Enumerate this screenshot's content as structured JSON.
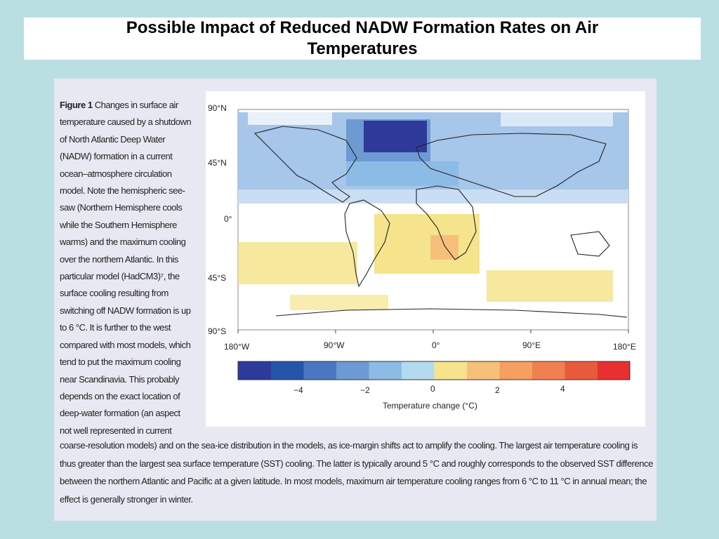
{
  "slide": {
    "title": "Possible Impact of Reduced NADW Formation Rates on Air Temperatures"
  },
  "figure": {
    "label": "Figure 1",
    "caption_side": "Changes in surface air\ntemperature caused by a shutdown\nof North Atlantic Deep Water\n(NADW) formation in a current\nocean–atmosphere circulation\nmodel. Note the hemispheric see-\nsaw (Northern Hemisphere cools\nwhile the Southern Hemisphere\nwarms) and the maximum cooling\nover the northern Atlantic. In this\nparticular model (HadCM3)⁷, the\nsurface cooling resulting from\nswitching off NADW formation is up\nto 6 °C. It is further to the west\ncompared with most models, which\ntend to put the maximum cooling\nnear Scandinavia. This probably\ndepends on the exact location of\ndeep-water formation (an aspect\nnot well represented in current",
    "caption_bottom": "coarse-resolution models) and on the sea-ice distribution in the models, as ice-margin shifts act to amplify the cooling. The largest air temperature cooling is thus greater than the largest sea surface temperature (SST) cooling. The latter is typically around 5 °C and roughly corresponds to the observed SST difference between the northern Atlantic and Pacific at a given latitude. In most models, maximum air temperature cooling ranges from 6 °C to 11 °C in annual mean; the effect is generally stronger in winter.",
    "lat_labels": [
      "90°N",
      "45°N",
      "0°",
      "45°S",
      "90°S"
    ],
    "lon_labels": [
      "180°W",
      "90°W",
      "0°",
      "90°E",
      "180°E"
    ],
    "colorbar": {
      "colors": [
        "#2e3a99",
        "#2455a8",
        "#4a78c0",
        "#6d9ad2",
        "#8cbbe6",
        "#b4daf0",
        "#f5e48c",
        "#f7c07a",
        "#f5a060",
        "#f08050",
        "#e85a3c",
        "#e83030"
      ],
      "tick_labels": [
        "−4",
        "−2",
        "0",
        "2",
        "4"
      ],
      "label": "Temperature change (°C)"
    }
  }
}
